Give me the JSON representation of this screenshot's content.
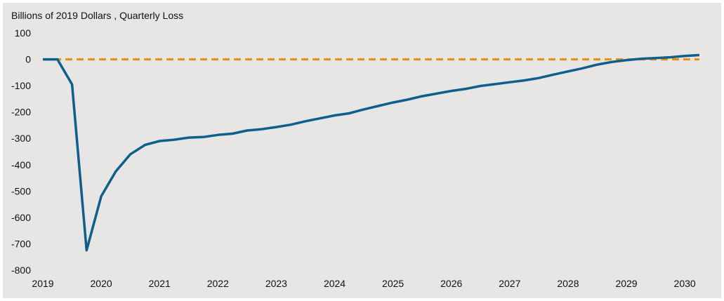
{
  "chart_data": {
    "type": "line",
    "title": "Billions of 2019 Dollars , Quarterly Loss",
    "xlabel": "",
    "ylabel": "",
    "x_ticks": [
      "2019",
      "2020",
      "2021",
      "2022",
      "2023",
      "2024",
      "2025",
      "2026",
      "2027",
      "2028",
      "2029",
      "2030"
    ],
    "x_tick_values": [
      2019,
      2020,
      2021,
      2022,
      2023,
      2024,
      2025,
      2026,
      2027,
      2028,
      2029,
      2030
    ],
    "y_ticks": [
      100,
      0,
      -100,
      -200,
      -300,
      -400,
      -500,
      -600,
      -700,
      -800
    ],
    "xlim": [
      2019,
      2030.6
    ],
    "ylim": [
      -800,
      100
    ],
    "grid": false,
    "legend": "none",
    "series": [
      {
        "color": "#0d5f8c",
        "style": "solid",
        "x": [
          2019.0,
          2019.25,
          2019.5,
          2019.75,
          2020.0,
          2020.25,
          2020.5,
          2020.75,
          2021.0,
          2021.25,
          2021.5,
          2021.75,
          2022.0,
          2022.25,
          2022.5,
          2022.75,
          2023.0,
          2023.25,
          2023.5,
          2023.75,
          2024.0,
          2024.25,
          2024.5,
          2024.75,
          2025.0,
          2025.25,
          2025.5,
          2025.75,
          2026.0,
          2026.25,
          2026.5,
          2026.75,
          2027.0,
          2027.25,
          2027.5,
          2027.75,
          2028.0,
          2028.25,
          2028.5,
          2028.75,
          2029.0,
          2029.25,
          2029.5,
          2029.75,
          2030.0,
          2030.25
        ],
        "y": [
          0,
          0,
          -95,
          -725,
          -520,
          -425,
          -360,
          -325,
          -310,
          -305,
          -297,
          -295,
          -287,
          -282,
          -270,
          -265,
          -257,
          -248,
          -235,
          -224,
          -213,
          -205,
          -190,
          -177,
          -164,
          -153,
          -140,
          -130,
          -120,
          -112,
          -101,
          -94,
          -87,
          -80,
          -71,
          -58,
          -46,
          -34,
          -20,
          -10,
          -3,
          2,
          5,
          8,
          13,
          16
        ]
      },
      {
        "color": "#e8900a",
        "style": "dashed",
        "x": [
          2019.0,
          2030.25
        ],
        "y": [
          0,
          0
        ]
      }
    ]
  }
}
